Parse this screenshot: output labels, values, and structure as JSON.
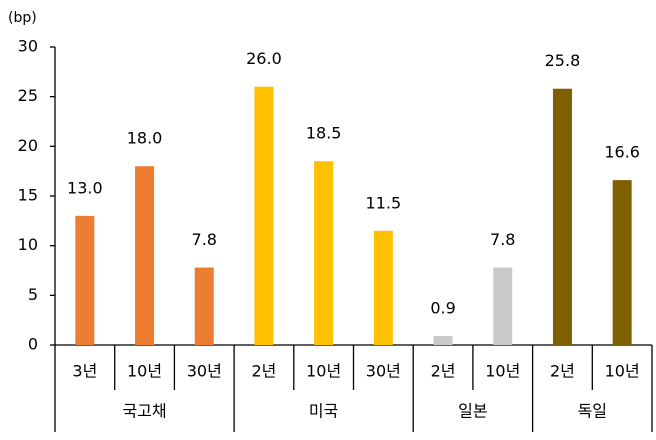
{
  "chart_data": {
    "type": "bar",
    "y_label": "(bp)",
    "ylim": [
      0,
      30
    ],
    "yticks": [
      0,
      5,
      10,
      15,
      20,
      25,
      30
    ],
    "groups": [
      {
        "label": "국고채",
        "color": "#ED7D31",
        "categories": [
          "3년",
          "10년",
          "30년"
        ],
        "values": [
          13.0,
          18.0,
          7.8
        ],
        "value_labels": [
          "13.0",
          "18.0",
          "7.8"
        ]
      },
      {
        "label": "미국",
        "color": "#FFC000",
        "categories": [
          "2년",
          "10년",
          "30년"
        ],
        "values": [
          26.0,
          18.5,
          11.5
        ],
        "value_labels": [
          "26.0",
          "18.5",
          "11.5"
        ]
      },
      {
        "label": "일본",
        "color": "#C9C9C9",
        "categories": [
          "2년",
          "10년"
        ],
        "values": [
          0.9,
          7.8
        ],
        "value_labels": [
          "0.9",
          "7.8"
        ]
      },
      {
        "label": "독일",
        "color": "#7F6000",
        "categories": [
          "2년",
          "10년"
        ],
        "values": [
          25.8,
          16.6
        ],
        "value_labels": [
          "25.8",
          "16.6"
        ]
      }
    ]
  }
}
